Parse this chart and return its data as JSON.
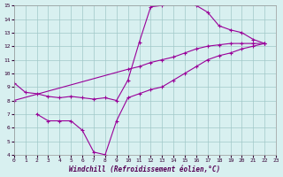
{
  "line1_x": [
    0,
    1,
    2,
    3,
    4,
    5,
    6,
    7,
    8,
    9,
    10,
    11,
    12,
    13,
    14,
    15,
    16,
    17,
    18,
    19,
    20,
    21,
    22
  ],
  "line1_y": [
    9.3,
    8.6,
    8.5,
    8.3,
    8.2,
    8.3,
    8.2,
    8.1,
    8.2,
    8.0,
    9.5,
    12.3,
    14.9,
    15.0,
    15.5,
    15.5,
    15.0,
    14.5,
    13.5,
    13.2,
    13.0,
    12.5,
    12.2
  ],
  "line2_x": [
    0,
    10,
    11,
    12,
    13,
    14,
    15,
    16,
    17,
    18,
    19,
    20,
    21,
    22
  ],
  "line2_y": [
    8.0,
    10.3,
    10.5,
    10.8,
    11.0,
    11.2,
    11.5,
    11.8,
    12.0,
    12.1,
    12.2,
    12.2,
    12.2,
    12.2
  ],
  "line3_x": [
    2,
    3,
    4,
    5,
    6,
    7,
    8,
    9,
    10,
    11,
    12,
    13,
    14,
    15,
    16,
    17,
    18,
    19,
    20,
    21,
    22
  ],
  "line3_y": [
    7.0,
    6.5,
    6.5,
    6.5,
    5.8,
    4.2,
    4.0,
    6.5,
    8.2,
    8.5,
    8.8,
    9.0,
    9.5,
    10.0,
    10.5,
    11.0,
    11.3,
    11.5,
    11.8,
    12.0,
    12.2
  ],
  "xlabel": "Windchill (Refroidissement éolien,°C)",
  "xlim": [
    0,
    23
  ],
  "ylim": [
    4,
    15
  ],
  "yticks": [
    4,
    5,
    6,
    7,
    8,
    9,
    10,
    11,
    12,
    13,
    14,
    15
  ],
  "xticks": [
    0,
    1,
    2,
    3,
    4,
    5,
    6,
    7,
    8,
    9,
    10,
    11,
    12,
    13,
    14,
    15,
    16,
    17,
    18,
    19,
    20,
    21,
    22,
    23
  ],
  "line_color": "#990099",
  "bg_color": "#d8f0f0",
  "grid_color": "#a0c8c8",
  "marker": "+"
}
